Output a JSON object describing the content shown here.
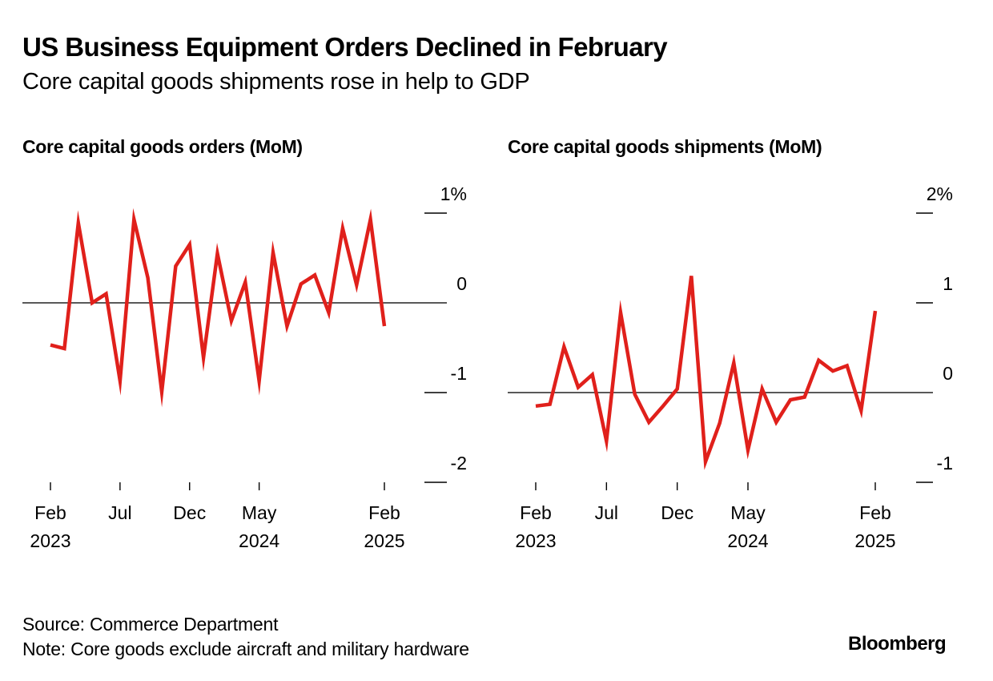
{
  "title": "US Business Equipment Orders Declined in February",
  "subtitle": "Core capital goods shipments rose in help to GDP",
  "source": "Source: Commerce Department",
  "note": "Note: Core goods exclude aircraft and military hardware",
  "brand": "Bloomberg",
  "colors": {
    "line": "#E0201B",
    "zero_line": "#222222",
    "text": "#000000"
  },
  "chart_data": [
    {
      "type": "line",
      "title": "Core capital goods orders (MoM)",
      "xlabel": "",
      "ylabel": "",
      "unit": "%",
      "ylim": [
        -2,
        1
      ],
      "yticks": [
        1,
        0,
        -1,
        -2
      ],
      "ytick_labels": [
        "1%",
        "0",
        "-1",
        "-2"
      ],
      "x_start": "2023-02",
      "x_end": "2025-02",
      "xticks": [
        {
          "month_index": 0,
          "label": "Feb",
          "year": "2023"
        },
        {
          "month_index": 5,
          "label": "Jul",
          "year": ""
        },
        {
          "month_index": 10,
          "label": "Dec",
          "year": ""
        },
        {
          "month_index": 15,
          "label": "May",
          "year": "2024"
        },
        {
          "month_index": 24,
          "label": "Feb",
          "year": "2025"
        }
      ],
      "x": [
        "2023-02",
        "2023-03",
        "2023-04",
        "2023-05",
        "2023-06",
        "2023-07",
        "2023-08",
        "2023-09",
        "2023-10",
        "2023-11",
        "2023-12",
        "2024-01",
        "2024-02",
        "2024-03",
        "2024-04",
        "2024-05",
        "2024-06",
        "2024-07",
        "2024-08",
        "2024-09",
        "2024-10",
        "2024-11",
        "2024-12",
        "2025-01",
        "2025-02"
      ],
      "series": [
        {
          "name": "Core capital goods orders",
          "values": [
            -0.47,
            -0.51,
            0.89,
            0.0,
            0.1,
            -0.87,
            0.93,
            0.28,
            -0.99,
            0.41,
            0.65,
            -0.61,
            0.55,
            -0.2,
            0.23,
            -0.87,
            0.56,
            -0.26,
            0.21,
            0.31,
            -0.11,
            0.83,
            0.2,
            0.93,
            -0.26
          ]
        }
      ],
      "grid": false,
      "legend": "none",
      "y_axis_side": "right"
    },
    {
      "type": "line",
      "title": "Core capital goods shipments (MoM)",
      "xlabel": "",
      "ylabel": "",
      "unit": "%",
      "ylim": [
        -1,
        2
      ],
      "yticks": [
        2,
        1,
        0,
        -1
      ],
      "ytick_labels": [
        "2%",
        "1",
        "0",
        "-1"
      ],
      "x_start": "2023-02",
      "x_end": "2025-02",
      "xticks": [
        {
          "month_index": 0,
          "label": "Feb",
          "year": "2023"
        },
        {
          "month_index": 5,
          "label": "Jul",
          "year": ""
        },
        {
          "month_index": 10,
          "label": "Dec",
          "year": ""
        },
        {
          "month_index": 15,
          "label": "May",
          "year": "2024"
        },
        {
          "month_index": 24,
          "label": "Feb",
          "year": "2025"
        }
      ],
      "x": [
        "2023-02",
        "2023-03",
        "2023-04",
        "2023-05",
        "2023-06",
        "2023-07",
        "2023-08",
        "2023-09",
        "2023-10",
        "2023-11",
        "2023-12",
        "2024-01",
        "2024-02",
        "2024-03",
        "2024-04",
        "2024-05",
        "2024-06",
        "2024-07",
        "2024-08",
        "2024-09",
        "2024-10",
        "2024-11",
        "2024-12",
        "2025-01",
        "2025-02"
      ],
      "series": [
        {
          "name": "Core capital goods shipments",
          "values": [
            -0.15,
            -0.13,
            0.51,
            0.06,
            0.2,
            -0.54,
            0.89,
            -0.02,
            -0.33,
            -0.15,
            0.04,
            1.3,
            -0.77,
            -0.34,
            0.33,
            -0.64,
            0.04,
            -0.33,
            -0.08,
            -0.05,
            0.36,
            0.24,
            0.3,
            -0.2,
            0.91
          ]
        }
      ],
      "grid": false,
      "legend": "none",
      "y_axis_side": "right"
    }
  ]
}
